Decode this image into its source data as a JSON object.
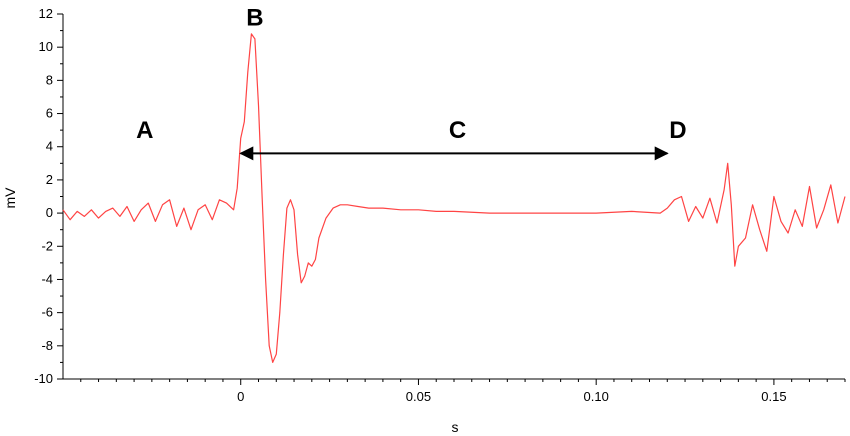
{
  "chart_data": {
    "type": "line",
    "title": "",
    "xlabel": "s",
    "ylabel": "mV",
    "xlim": [
      -0.05,
      0.17
    ],
    "ylim": [
      -10,
      12
    ],
    "x_ticks": [
      0,
      0.05,
      0.1,
      0.15
    ],
    "x_tick_labels": [
      "0",
      "0.05",
      "0.10",
      "0.15"
    ],
    "y_ticks": [
      -10,
      -8,
      -6,
      -4,
      -2,
      0,
      2,
      4,
      6,
      8,
      10,
      12
    ],
    "y_tick_labels": [
      "-10",
      "-8",
      "-6",
      "-4",
      "-2",
      "0",
      "2",
      "4",
      "6",
      "8",
      "10",
      "12"
    ],
    "grid": false,
    "line_color": "#ff4444",
    "series": [
      {
        "x": [
          -0.05,
          -0.048,
          -0.046,
          -0.044,
          -0.042,
          -0.04,
          -0.038,
          -0.036,
          -0.034,
          -0.032,
          -0.03,
          -0.028,
          -0.026,
          -0.024,
          -0.022,
          -0.02,
          -0.018,
          -0.016,
          -0.014,
          -0.012,
          -0.01,
          -0.008,
          -0.006,
          -0.004,
          -0.002,
          -0.001,
          0,
          0.001,
          0.002,
          0.003,
          0.004,
          0.005,
          0.006,
          0.007,
          0.008,
          0.009,
          0.01,
          0.011,
          0.012,
          0.013,
          0.014,
          0.015,
          0.016,
          0.017,
          0.018,
          0.019,
          0.02,
          0.021,
          0.022,
          0.024,
          0.026,
          0.028,
          0.03,
          0.033,
          0.036,
          0.04,
          0.045,
          0.05,
          0.055,
          0.06,
          0.07,
          0.08,
          0.09,
          0.1,
          0.11,
          0.118,
          0.12,
          0.122,
          0.124,
          0.126,
          0.128,
          0.13,
          0.132,
          0.134,
          0.136,
          0.137,
          0.138,
          0.139,
          0.14,
          0.142,
          0.144,
          0.146,
          0.148,
          0.15,
          0.152,
          0.154,
          0.156,
          0.158,
          0.16,
          0.162,
          0.164,
          0.166,
          0.168,
          0.17
        ],
        "values": [
          0.2,
          -0.4,
          0.1,
          -0.2,
          0.2,
          -0.3,
          0.1,
          0.3,
          -0.2,
          0.4,
          -0.5,
          0.2,
          0.6,
          -0.5,
          0.5,
          0.8,
          -0.8,
          0.3,
          -1.0,
          0.2,
          0.5,
          -0.4,
          0.8,
          0.6,
          0.2,
          1.5,
          4.5,
          5.5,
          8.5,
          10.8,
          10.5,
          6.5,
          1.0,
          -4.0,
          -8.0,
          -9.0,
          -8.5,
          -6.0,
          -2.5,
          0.3,
          0.8,
          0.2,
          -2.5,
          -4.2,
          -3.8,
          -3.0,
          -3.2,
          -2.8,
          -1.5,
          -0.3,
          0.3,
          0.5,
          0.5,
          0.4,
          0.3,
          0.3,
          0.2,
          0.2,
          0.1,
          0.1,
          0.0,
          0.0,
          0.0,
          0.0,
          0.1,
          0.0,
          0.3,
          0.8,
          1.0,
          -0.5,
          0.4,
          -0.3,
          0.9,
          -0.6,
          1.4,
          3.0,
          0.5,
          -3.2,
          -2.0,
          -1.5,
          0.5,
          -1.0,
          -2.3,
          1.0,
          -0.5,
          -1.2,
          0.2,
          -0.8,
          1.6,
          -0.9,
          0.2,
          1.7,
          -0.6,
          1.0
        ]
      }
    ],
    "annotations": [
      {
        "text": "A",
        "x": -0.027,
        "y": 5.0
      },
      {
        "text": "B",
        "x": 0.004,
        "y": 11.8
      },
      {
        "text": "C",
        "x": 0.061,
        "y": 5.0
      },
      {
        "text": "D",
        "x": 0.123,
        "y": 5.0
      }
    ],
    "arrow": {
      "x_start": 0.0,
      "x_end": 0.12,
      "y": 3.6
    }
  }
}
